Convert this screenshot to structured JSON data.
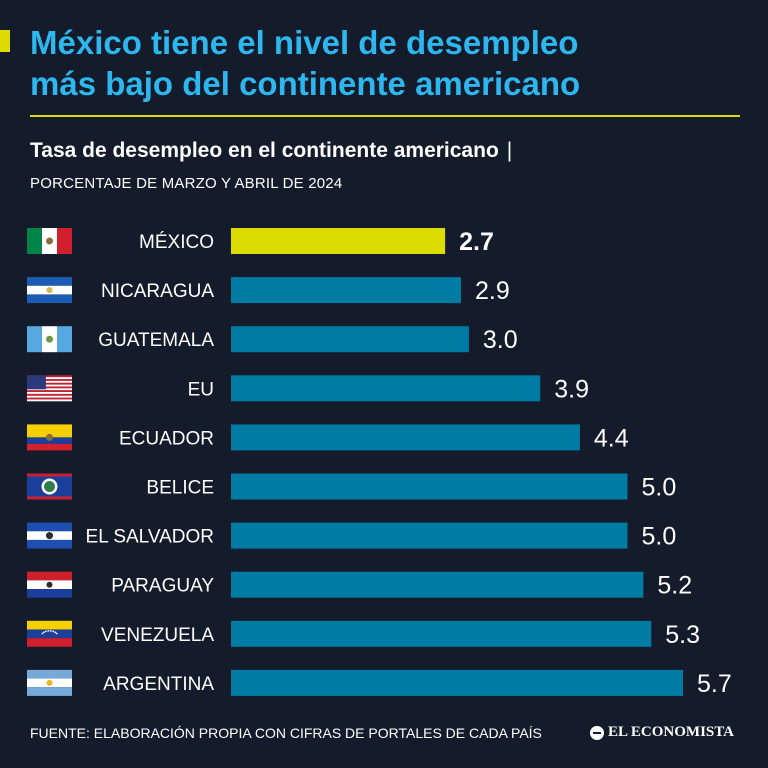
{
  "header": {
    "title_line1": "México tiene el nivel de desempleo",
    "title_line2": "más bajo del continente americano"
  },
  "chart_data": {
    "type": "bar",
    "orientation": "horizontal",
    "title": "Tasa de desempleo en el continente americano",
    "subtitle": "PORCENTAJE DE MARZO Y ABRIL DE 2024",
    "categories": [
      "MÉXICO",
      "NICARAGUA",
      "GUATEMALA",
      "EU",
      "ECUADOR",
      "BELICE",
      "EL SALVADOR",
      "PARAGUAY",
      "VENEZUELA",
      "ARGENTINA"
    ],
    "values": [
      2.7,
      2.9,
      3.0,
      3.9,
      4.4,
      5.0,
      5.0,
      5.2,
      5.3,
      5.7
    ],
    "value_labels": [
      "2.7",
      "2.9",
      "3.0",
      "3.9",
      "4.4",
      "5.0",
      "5.0",
      "5.2",
      "5.3",
      "5.7"
    ],
    "flags": [
      "mexico",
      "nicaragua",
      "guatemala",
      "usa",
      "ecuador",
      "belize",
      "el-salvador",
      "paraguay",
      "venezuela",
      "argentina"
    ],
    "highlight_index": 0,
    "colors": {
      "bar": "#007ba4",
      "highlight": "#dcdc00",
      "title": "#2eb6ee"
    }
  },
  "footer": {
    "source": "FUENTE: ELABORACIÓN PROPIA CON CIFRAS DE PORTALES DE CADA PAÍS",
    "brand": "EL ECONOMISTA"
  }
}
